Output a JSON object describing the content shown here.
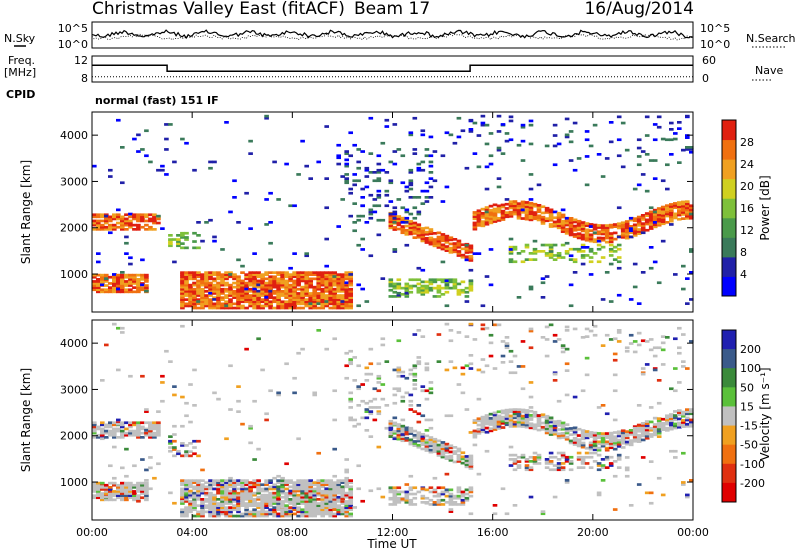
{
  "header": {
    "title": "Christmas Valley East (fitACF)",
    "beam": "Beam 17",
    "date": "16/Aug/2014"
  },
  "left_labels": {
    "nsky": "N.Sky",
    "freq": "Freq.",
    "freq_unit": "[MHz]",
    "cpid": "CPID"
  },
  "right_labels": {
    "nsearch": "N.Search",
    "nave": "Nave"
  },
  "mode_text": "normal (fast) 151 IF",
  "chart_data": [
    {
      "type": "line",
      "panel": "noise",
      "series": [
        {
          "name": "N.Sky",
          "style": "solid"
        },
        {
          "name": "N.Search",
          "style": "dotted"
        }
      ],
      "left_ticks": [
        "10^5",
        "10^0"
      ],
      "right_ticks": [
        "10^5",
        "10^0"
      ],
      "scale": "log"
    },
    {
      "type": "line",
      "panel": "frequency",
      "left_ticks": [
        "12",
        "8"
      ],
      "right_ticks": [
        "60",
        "0"
      ],
      "freq_steps": [
        {
          "from_h": 0,
          "to_h": 3.0,
          "mhz": 11.7
        },
        {
          "from_h": 3.0,
          "to_h": 15.1,
          "mhz": 10.4
        },
        {
          "from_h": 15.1,
          "to_h": 24,
          "mhz": 11.7
        }
      ],
      "nave_level": 12
    },
    {
      "type": "heatmap",
      "panel": "power",
      "ylabel": "Slant Range [km]",
      "yticks": [
        1000,
        2000,
        3000,
        4000
      ],
      "ylim": [
        180,
        4500
      ],
      "colorbar_label": "Power [dB]",
      "colorbar_ticks": [
        4,
        8,
        12,
        16,
        20,
        24,
        28
      ],
      "colorbar_range": [
        0,
        32
      ],
      "colors": [
        "#0000ff",
        "#2020a8",
        "#3a7a5a",
        "#4a9a4a",
        "#7ec03a",
        "#d0d020",
        "#f0a020",
        "#f07010",
        "#e02010"
      ]
    },
    {
      "type": "heatmap",
      "panel": "velocity",
      "ylabel": "Slant Range [km]",
      "yticks": [
        1000,
        2000,
        3000,
        4000
      ],
      "ylim": [
        180,
        4500
      ],
      "colorbar_label": "Velocity [m s⁻¹]",
      "colorbar_ticks": [
        "200",
        "100",
        "50",
        "15",
        "-15",
        "-50",
        "-100",
        "-200"
      ],
      "colors": [
        "#2020b0",
        "#3a5a8a",
        "#3a8a3a",
        "#5ac03a",
        "#c0c0c0",
        "#f0a020",
        "#f07010",
        "#e03010",
        "#e00000"
      ]
    }
  ],
  "x_axis": {
    "ticks": [
      "00:00",
      "04:00",
      "08:00",
      "12:00",
      "16:00",
      "20:00",
      "00:00"
    ],
    "label": "Time UT",
    "range_hours": [
      0,
      24
    ]
  }
}
